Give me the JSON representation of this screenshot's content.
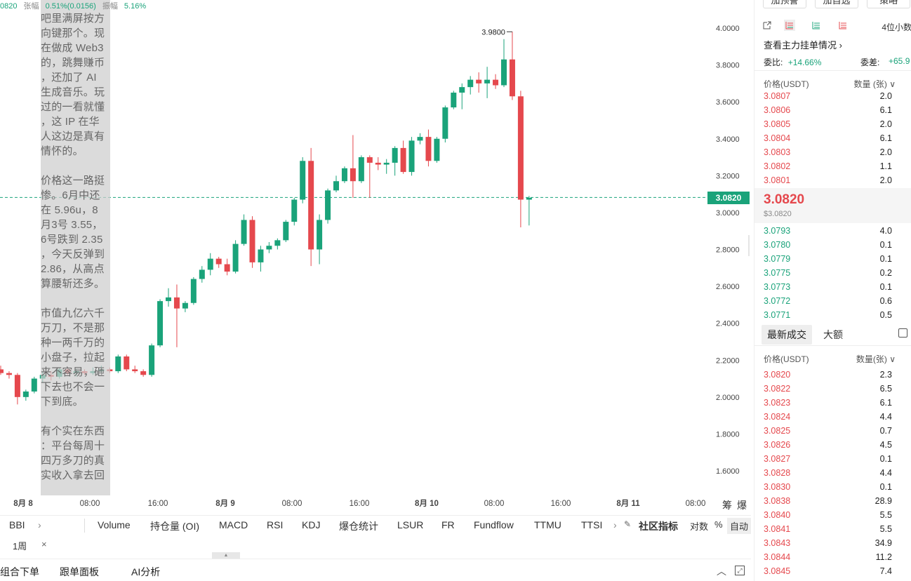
{
  "top_info": {
    "price": "0820",
    "change_label": "张幅",
    "change_value": "0.51%(0.0156)",
    "amp_label": "振幅",
    "amp_value": "5.16%"
  },
  "overlay_text": {
    "p1": [
      "吧里满屏按方",
      "向键那个。现",
      "在做成 Web3",
      "的，跳舞赚币",
      "，还加了 AI",
      "生成音乐。玩",
      "过的一看就懂",
      "，这 IP 在华",
      "人这边是真有",
      "情怀的。"
    ],
    "p2": [
      "价格这一路挺",
      "惨。6月中还",
      "在 5.96u，8",
      "月3号 3.55，",
      "6号跌到 2.35",
      "，今天反弹到",
      "2.86，从高点",
      "算腰斩还多。"
    ],
    "p3": [
      "市值九亿六千",
      "万刀，不是那",
      "种一两千万的",
      "小盘子，拉起",
      "来不容易，砸",
      "下去也不会一",
      "下到底。"
    ],
    "p4": [
      "有个实在东西",
      "：平台每周十",
      "四万多刀的真",
      "实收入拿去回"
    ]
  },
  "chart_data": {
    "type": "candlestick",
    "y_ticks": [
      "4.0000",
      "3.8000",
      "3.6000",
      "3.4000",
      "3.2000",
      "3.0000",
      "2.8000",
      "2.6000",
      "2.4000",
      "2.2000",
      "2.0000",
      "1.8000",
      "1.6000"
    ],
    "x_ticks": [
      "8月 8",
      "08:00",
      "16:00",
      "8月 9",
      "08:00",
      "16:00",
      "8月 10",
      "08:00",
      "16:00",
      "8月 11",
      "08:00"
    ],
    "ylim": [
      1.55,
      4.15
    ],
    "high_marker": "3.9800",
    "current_price": "3.0820",
    "candles": [
      [
        2.15,
        2.17,
        2.12,
        2.13
      ],
      [
        2.13,
        2.14,
        2.1,
        2.12
      ],
      [
        2.12,
        2.13,
        1.96,
        2.0
      ],
      [
        2.0,
        2.04,
        1.98,
        2.03
      ],
      [
        2.03,
        2.11,
        2.02,
        2.1
      ],
      [
        2.1,
        2.14,
        2.08,
        2.12
      ],
      [
        2.12,
        2.14,
        2.09,
        2.11
      ],
      [
        2.11,
        2.16,
        2.1,
        2.15
      ],
      [
        2.15,
        2.16,
        2.12,
        2.13
      ],
      [
        2.13,
        2.15,
        2.11,
        2.14
      ],
      [
        2.14,
        2.15,
        2.12,
        2.13
      ],
      [
        2.13,
        2.16,
        2.12,
        2.14
      ],
      [
        2.14,
        2.17,
        2.13,
        2.15
      ],
      [
        2.15,
        2.16,
        2.13,
        2.14
      ],
      [
        2.14,
        2.23,
        2.13,
        2.22
      ],
      [
        2.22,
        2.23,
        2.14,
        2.15
      ],
      [
        2.15,
        2.17,
        2.13,
        2.14
      ],
      [
        2.14,
        2.15,
        2.11,
        2.12
      ],
      [
        2.12,
        2.29,
        2.11,
        2.28
      ],
      [
        2.28,
        2.53,
        2.27,
        2.52
      ],
      [
        2.52,
        2.59,
        2.49,
        2.54
      ],
      [
        2.54,
        2.61,
        2.27,
        2.48
      ],
      [
        2.48,
        2.52,
        2.46,
        2.51
      ],
      [
        2.51,
        2.65,
        2.5,
        2.64
      ],
      [
        2.64,
        2.71,
        2.62,
        2.69
      ],
      [
        2.69,
        2.78,
        2.66,
        2.75
      ],
      [
        2.75,
        2.76,
        2.7,
        2.72
      ],
      [
        2.72,
        2.75,
        2.66,
        2.68
      ],
      [
        2.68,
        2.85,
        2.67,
        2.83
      ],
      [
        2.83,
        2.99,
        2.82,
        2.96
      ],
      [
        2.96,
        2.98,
        2.7,
        2.73
      ],
      [
        2.73,
        2.82,
        2.68,
        2.8
      ],
      [
        2.8,
        2.84,
        2.78,
        2.82
      ],
      [
        2.82,
        2.86,
        2.8,
        2.85
      ],
      [
        2.85,
        2.96,
        2.84,
        2.95
      ],
      [
        2.95,
        3.08,
        2.93,
        3.07
      ],
      [
        3.07,
        3.3,
        3.05,
        3.28
      ],
      [
        3.28,
        3.35,
        2.71,
        2.8
      ],
      [
        2.8,
        2.99,
        2.72,
        2.96
      ],
      [
        2.96,
        3.13,
        2.94,
        3.12
      ],
      [
        3.12,
        3.2,
        3.11,
        3.17
      ],
      [
        3.17,
        3.25,
        3.16,
        3.24
      ],
      [
        3.24,
        3.42,
        3.08,
        3.17
      ],
      [
        3.17,
        3.31,
        3.16,
        3.3
      ],
      [
        3.3,
        3.31,
        3.08,
        3.27
      ],
      [
        3.27,
        3.3,
        3.23,
        3.26
      ],
      [
        3.26,
        3.29,
        3.21,
        3.27
      ],
      [
        3.27,
        3.36,
        3.2,
        3.35
      ],
      [
        3.35,
        3.39,
        3.21,
        3.22
      ],
      [
        3.22,
        3.41,
        3.2,
        3.39
      ],
      [
        3.39,
        3.43,
        3.37,
        3.41
      ],
      [
        3.41,
        3.45,
        3.25,
        3.28
      ],
      [
        3.28,
        3.41,
        3.27,
        3.4
      ],
      [
        3.4,
        3.58,
        3.38,
        3.57
      ],
      [
        3.57,
        3.66,
        3.56,
        3.65
      ],
      [
        3.65,
        3.7,
        3.56,
        3.68
      ],
      [
        3.68,
        3.74,
        3.64,
        3.72
      ],
      [
        3.72,
        3.76,
        3.65,
        3.7
      ],
      [
        3.7,
        3.79,
        3.62,
        3.72
      ],
      [
        3.72,
        3.75,
        3.67,
        3.69
      ],
      [
        3.69,
        3.94,
        3.68,
        3.83
      ],
      [
        3.83,
        3.98,
        3.61,
        3.63
      ],
      [
        3.63,
        3.66,
        2.92,
        3.07
      ],
      [
        3.07,
        3.09,
        2.93,
        3.08
      ]
    ]
  },
  "indicator_tabs": [
    "BBI",
    "Volume",
    "持仓量 (OI)",
    "MACD",
    "RSI",
    "KDJ",
    "爆仓统计",
    "LSUR",
    "FR",
    "Fundflow",
    "TTMU",
    "TTSI"
  ],
  "indicator_misc": {
    "chevron": "›",
    "community": "社区指标",
    "log": "对数",
    "pct": "%",
    "auto": "自动",
    "chips": "筹",
    "burst": "爆"
  },
  "period": {
    "label": "1周",
    "close": "×"
  },
  "bottom_bar": {
    "combo": "组合下单",
    "follow": "跟单面板",
    "ai": "AI分析"
  },
  "orderbook": {
    "top_btns": [
      "加预警",
      "加自选",
      "策略"
    ],
    "decimals": "4位小数",
    "main_orders": "查看主力挂单情况 ›",
    "ratio_label": "委比:",
    "ratio_value": "+14.66%",
    "diff_label": "委差:",
    "diff_value": "+65.9",
    "header_price": "价格(USDT)",
    "header_qty": "数量 (张) ∨",
    "asks": [
      [
        "3.0807",
        "2.0"
      ],
      [
        "3.0806",
        "6.1"
      ],
      [
        "3.0805",
        "2.0"
      ],
      [
        "3.0804",
        "6.1"
      ],
      [
        "3.0803",
        "2.0"
      ],
      [
        "3.0802",
        "1.1"
      ],
      [
        "3.0801",
        "2.0"
      ]
    ],
    "last_price": "3.0820",
    "last_usd": "$3.0820",
    "bids": [
      [
        "3.0793",
        "4.0"
      ],
      [
        "3.0780",
        "0.1"
      ],
      [
        "3.0779",
        "0.1"
      ],
      [
        "3.0775",
        "0.2"
      ],
      [
        "3.0773",
        "0.1"
      ],
      [
        "3.0772",
        "0.6"
      ],
      [
        "3.0771",
        "0.5"
      ]
    ],
    "trade_tab_latest": "最新成交",
    "trade_tab_large": "大额",
    "trades_header_price": "价格(USDT)",
    "trades_header_qty": "数量(张) ∨",
    "trades": [
      [
        "3.0820",
        "2.3"
      ],
      [
        "3.0822",
        "6.5"
      ],
      [
        "3.0823",
        "6.1"
      ],
      [
        "3.0824",
        "4.4"
      ],
      [
        "3.0825",
        "0.7"
      ],
      [
        "3.0826",
        "4.5"
      ],
      [
        "3.0827",
        "0.1"
      ],
      [
        "3.0828",
        "4.4"
      ],
      [
        "3.0830",
        "0.1"
      ],
      [
        "3.0838",
        "28.9"
      ],
      [
        "3.0840",
        "5.5"
      ],
      [
        "3.0841",
        "5.5"
      ],
      [
        "3.0843",
        "34.9"
      ],
      [
        "3.0844",
        "11.2"
      ],
      [
        "3.0845",
        "7.4"
      ]
    ]
  },
  "colors": {
    "up": "#1aa37a",
    "down": "#e5484d"
  }
}
